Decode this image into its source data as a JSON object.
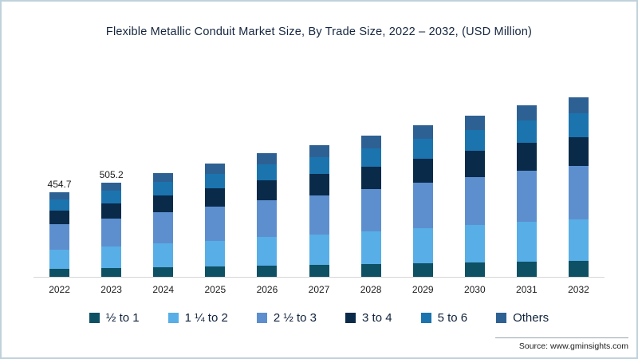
{
  "title": "Flexible Metallic Conduit Market Size, By Trade Size, 2022 – 2032, (USD Million)",
  "source": "Source: www.gminsights.com",
  "chart_data": {
    "type": "bar",
    "stacked": true,
    "title": "Flexible Metallic Conduit Market Size, By Trade Size, 2022 – 2032, (USD Million)",
    "xlabel": "",
    "ylabel": "USD Million",
    "ylim": [
      0,
      1000
    ],
    "grid": false,
    "legend_position": "bottom",
    "categories": [
      "2022",
      "2023",
      "2024",
      "2025",
      "2026",
      "2027",
      "2028",
      "2029",
      "2030",
      "2031",
      "2032"
    ],
    "series": [
      {
        "name": "½ to 1",
        "color": "#0e5164",
        "values": [
          40.9,
          45.5,
          50.2,
          54.6,
          59.6,
          63.5,
          68.1,
          73.1,
          77.8,
          82.7,
          86.6
        ]
      },
      {
        "name": "1 ¼ to 2",
        "color": "#58aee6",
        "values": [
          104.6,
          116.2,
          128.3,
          139.6,
          152.3,
          162.4,
          174.1,
          186.8,
          198.7,
          211.4,
          221.3
        ]
      },
      {
        "name": "2 ½ to 3",
        "color": "#5d8fce",
        "values": [
          136.4,
          151.6,
          167.4,
          182.1,
          198.6,
          211.8,
          227.1,
          243.6,
          259.2,
          275.7,
          288.6
        ]
      },
      {
        "name": "3 to 4",
        "color": "#0a2a4a",
        "values": [
          72.8,
          80.8,
          89.3,
          97.1,
          105.9,
          113.0,
          121.1,
          129.9,
          138.2,
          147.0,
          153.9
        ]
      },
      {
        "name": "5 to 6",
        "color": "#1b74ae",
        "values": [
          59.1,
          65.7,
          72.5,
          78.9,
          86.1,
          91.8,
          98.4,
          105.6,
          112.3,
          119.5,
          125.1
        ]
      },
      {
        "name": "Others",
        "color": "#2e6193",
        "values": [
          40.9,
          45.4,
          50.2,
          54.6,
          59.6,
          63.5,
          68.1,
          73.1,
          77.8,
          82.7,
          86.6
        ]
      }
    ],
    "totals_labeled": {
      "2022": "454.7",
      "2023": "505.2"
    }
  }
}
